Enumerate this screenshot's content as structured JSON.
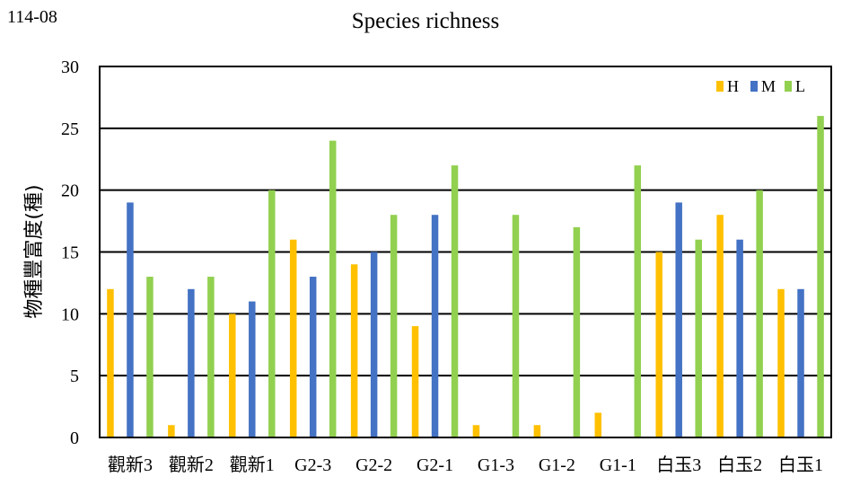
{
  "corner_label": "114-08",
  "chart_data": {
    "type": "bar",
    "title": "Species richness",
    "xlabel": "",
    "ylabel": "物種豐富度(種)",
    "ylim": [
      0,
      30
    ],
    "yticks": [
      0,
      5,
      10,
      15,
      20,
      25,
      30
    ],
    "grid": true,
    "legend_position": "top-right",
    "categories": [
      "觀新3",
      "觀新2",
      "觀新1",
      "G2-3",
      "G2-2",
      "G2-1",
      "G1-3",
      "G1-2",
      "G1-1",
      "白玉3",
      "白玉2",
      "白玉1"
    ],
    "series": [
      {
        "name": "H",
        "color": "#FFC000",
        "values": [
          12,
          1,
          10,
          16,
          14,
          9,
          1,
          1,
          2,
          15,
          18,
          12
        ]
      },
      {
        "name": "M",
        "color": "#4472C4",
        "values": [
          19,
          12,
          11,
          13,
          15,
          18,
          0,
          0,
          0,
          19,
          16,
          12
        ]
      },
      {
        "name": "L",
        "color": "#92D050",
        "values": [
          13,
          13,
          20,
          24,
          18,
          22,
          18,
          17,
          22,
          16,
          20,
          26
        ]
      }
    ]
  }
}
